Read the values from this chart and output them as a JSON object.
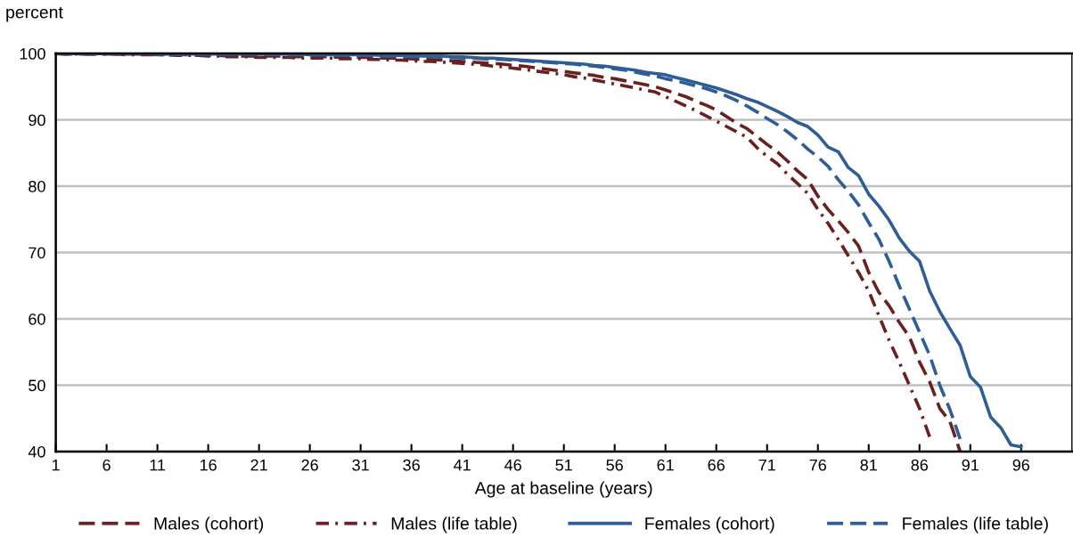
{
  "chart_data": {
    "type": "line",
    "ylabel": "percent",
    "xlabel": "Age at baseline (years)",
    "x": [
      1,
      2,
      3,
      4,
      5,
      6,
      7,
      8,
      9,
      10,
      11,
      12,
      13,
      14,
      15,
      16,
      17,
      18,
      19,
      20,
      21,
      22,
      23,
      24,
      25,
      26,
      27,
      28,
      29,
      30,
      31,
      32,
      33,
      34,
      35,
      36,
      37,
      38,
      39,
      40,
      41,
      42,
      43,
      44,
      45,
      46,
      47,
      48,
      49,
      50,
      51,
      52,
      53,
      54,
      55,
      56,
      57,
      58,
      59,
      60,
      61,
      62,
      63,
      64,
      65,
      66,
      67,
      68,
      69,
      70,
      71,
      72,
      73,
      74,
      75,
      76,
      77,
      78,
      79,
      80,
      81,
      82,
      83,
      84,
      85,
      86,
      87,
      88,
      89,
      90,
      91,
      92,
      93,
      94,
      95,
      96
    ],
    "series": [
      {
        "name": "Males (cohort)",
        "color": "#6b2020",
        "line_style": "dashed",
        "values": [
          100,
          99.9,
          99.9,
          99.9,
          99.9,
          99.9,
          99.9,
          99.9,
          99.9,
          99.9,
          99.8,
          99.8,
          99.8,
          99.8,
          99.7,
          99.7,
          99.7,
          99.6,
          99.6,
          99.6,
          99.6,
          99.6,
          99.6,
          99.5,
          99.5,
          99.5,
          99.5,
          99.5,
          99.4,
          99.4,
          99.4,
          99.4,
          99.3,
          99.3,
          99.2,
          99.2,
          99.1,
          99.1,
          99.0,
          98.9,
          98.8,
          98.7,
          98.6,
          98.5,
          98.4,
          98.2,
          98.1,
          97.9,
          97.7,
          97.5,
          97.3,
          97.1,
          96.9,
          96.7,
          96.4,
          96.2,
          95.9,
          95.6,
          95.3,
          95.0,
          94.5,
          94.0,
          93.5,
          92.8,
          92.2,
          91.5,
          90.5,
          89.5,
          88.7,
          87.5,
          86.3,
          85.2,
          83.8,
          82.3,
          81.0,
          78.5,
          76.5,
          74.8,
          73.0,
          71.0,
          67.0,
          64.0,
          62.0,
          59.5,
          57.3,
          53.5,
          50.5,
          46.5,
          44.5,
          40.0,
          null,
          null,
          null,
          null,
          null,
          null
        ]
      },
      {
        "name": "Males (life table)",
        "color": "#6b2020",
        "line_style": "dashdot",
        "values": [
          100,
          99.9,
          99.9,
          99.9,
          99.9,
          99.9,
          99.9,
          99.8,
          99.8,
          99.8,
          99.8,
          99.8,
          99.7,
          99.7,
          99.7,
          99.6,
          99.6,
          99.5,
          99.5,
          99.5,
          99.4,
          99.4,
          99.4,
          99.4,
          99.3,
          99.3,
          99.3,
          99.3,
          99.2,
          99.2,
          99.2,
          99.1,
          99.1,
          99.0,
          99.0,
          98.9,
          98.8,
          98.8,
          98.7,
          98.6,
          98.5,
          98.4,
          98.3,
          98.1,
          98.0,
          97.8,
          97.6,
          97.4,
          97.2,
          97.0,
          96.8,
          96.5,
          96.3,
          96.0,
          95.7,
          95.4,
          95.1,
          94.8,
          94.5,
          94.2,
          93.5,
          92.8,
          92.1,
          91.4,
          90.6,
          89.8,
          89.0,
          88.2,
          87.4,
          85.8,
          84.5,
          83.4,
          81.8,
          80.4,
          78.9,
          76.5,
          74.4,
          72.0,
          69.5,
          67.0,
          64.2,
          60.5,
          56.8,
          53.5,
          50.0,
          46.5,
          42.2,
          null,
          null,
          null,
          null,
          null,
          null,
          null,
          null,
          null
        ]
      },
      {
        "name": "Females (cohort)",
        "color": "#2e5e95",
        "line_style": "solid",
        "values": [
          100,
          100,
          100,
          100,
          100,
          100,
          100,
          100,
          100,
          100,
          99.9,
          99.9,
          99.9,
          99.9,
          99.9,
          99.9,
          99.9,
          99.9,
          99.9,
          99.9,
          99.9,
          99.9,
          99.9,
          99.9,
          99.9,
          99.8,
          99.8,
          99.8,
          99.8,
          99.8,
          99.8,
          99.8,
          99.7,
          99.7,
          99.7,
          99.7,
          99.6,
          99.6,
          99.6,
          99.5,
          99.5,
          99.4,
          99.3,
          99.3,
          99.2,
          99.1,
          99.0,
          98.9,
          98.8,
          98.7,
          98.6,
          98.5,
          98.4,
          98.2,
          98.1,
          97.9,
          97.7,
          97.5,
          97.2,
          97.0,
          96.8,
          96.4,
          96.0,
          95.6,
          95.2,
          94.8,
          94.3,
          93.8,
          93.2,
          92.7,
          92.0,
          91.3,
          90.5,
          89.6,
          89.0,
          87.7,
          85.9,
          85.2,
          82.8,
          81.6,
          78.8,
          77.0,
          74.9,
          72.2,
          70.2,
          68.7,
          64.2,
          61.1,
          58.5,
          56.0,
          51.3,
          49.7,
          45.2,
          43.6,
          41.0,
          40.7
        ]
      },
      {
        "name": "Females (life table)",
        "color": "#2e5e95",
        "line_style": "dashed",
        "values": [
          100,
          100,
          100,
          100,
          100,
          100,
          100,
          100,
          100,
          100,
          99.9,
          99.9,
          99.9,
          99.9,
          99.9,
          99.9,
          99.9,
          99.9,
          99.9,
          99.9,
          99.9,
          99.9,
          99.8,
          99.8,
          99.8,
          99.8,
          99.8,
          99.8,
          99.7,
          99.7,
          99.7,
          99.7,
          99.6,
          99.6,
          99.6,
          99.5,
          99.5,
          99.5,
          99.4,
          99.4,
          99.3,
          99.3,
          99.2,
          99.1,
          99.1,
          99.0,
          98.9,
          98.8,
          98.7,
          98.6,
          98.5,
          98.4,
          98.2,
          98.1,
          97.9,
          97.7,
          97.5,
          97.2,
          96.9,
          96.6,
          96.2,
          95.9,
          95.5,
          95.1,
          94.7,
          94.2,
          93.6,
          92.9,
          92.1,
          91.2,
          90.2,
          89.3,
          88.2,
          87.0,
          85.6,
          84.4,
          83.0,
          81.0,
          79.2,
          77.2,
          74.5,
          72.0,
          68.7,
          65.0,
          61.5,
          58.0,
          54.5,
          50.0,
          46.3,
          41.9,
          null,
          null,
          null,
          null,
          null,
          null
        ]
      }
    ],
    "xlim": [
      1,
      101
    ],
    "xticks": [
      1,
      6,
      11,
      16,
      21,
      26,
      31,
      36,
      41,
      46,
      51,
      56,
      61,
      66,
      71,
      76,
      81,
      86,
      91,
      96
    ],
    "ylim": [
      40,
      100
    ],
    "yticks": [
      40,
      50,
      60,
      70,
      80,
      90,
      100
    ],
    "grid": "y",
    "legend": "bottom",
    "marker": "none"
  }
}
